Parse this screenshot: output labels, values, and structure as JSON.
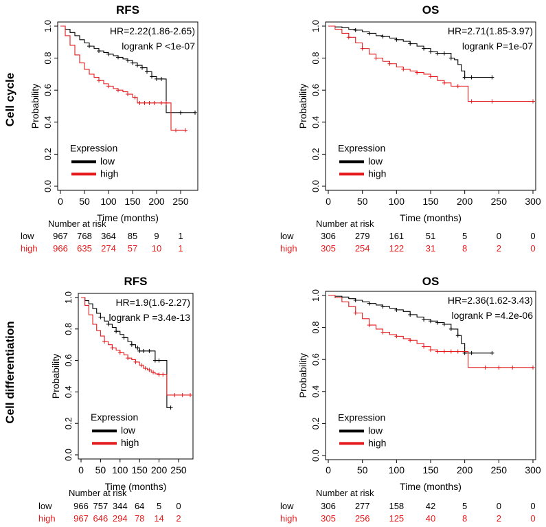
{
  "row_labels": [
    "Cell cycle",
    "Cell differentiation"
  ],
  "colors": {
    "low": "#000000",
    "high": "#e41a1c",
    "axis": "#000000"
  },
  "chart_data": [
    {
      "type": "line",
      "title": "RFS",
      "xlabel": "Time (months)",
      "ylabel": "Probability",
      "xlim": [
        0,
        280
      ],
      "ylim": [
        0,
        1
      ],
      "xticks": [
        0,
        50,
        100,
        150,
        200,
        250
      ],
      "yticks": [
        0.0,
        0.2,
        0.4,
        0.6,
        0.8,
        1.0
      ],
      "yticklabels": [
        "0.0",
        "0.2",
        "0.4",
        "0.6",
        "0.8",
        "1.0"
      ],
      "hr_text": "HR=2.22(1.86-2.65)",
      "p_text": "logrank P <1e-07",
      "legend": {
        "title": "Expression",
        "labels": [
          "low",
          "high"
        ]
      },
      "series": [
        {
          "name": "low",
          "x": [
            0,
            10,
            20,
            30,
            40,
            50,
            60,
            70,
            80,
            90,
            100,
            110,
            120,
            130,
            140,
            150,
            160,
            170,
            180,
            190,
            200,
            210,
            218,
            220,
            230,
            250,
            280
          ],
          "y": [
            1.0,
            0.98,
            0.96,
            0.94,
            0.915,
            0.895,
            0.875,
            0.86,
            0.845,
            0.835,
            0.825,
            0.815,
            0.805,
            0.795,
            0.785,
            0.77,
            0.755,
            0.74,
            0.715,
            0.685,
            0.67,
            0.67,
            0.67,
            0.46,
            0.46,
            0.46,
            0.46
          ],
          "censor_x": [
            60,
            80,
            100,
            120,
            140,
            150,
            160,
            170,
            180,
            190,
            200,
            210,
            250,
            280
          ]
        },
        {
          "name": "high",
          "x": [
            0,
            10,
            20,
            30,
            40,
            50,
            60,
            70,
            80,
            90,
            100,
            110,
            120,
            130,
            140,
            150,
            160,
            170,
            180,
            190,
            200,
            210,
            220,
            228,
            230,
            260
          ],
          "y": [
            1.0,
            0.94,
            0.88,
            0.82,
            0.77,
            0.73,
            0.7,
            0.68,
            0.66,
            0.64,
            0.625,
            0.61,
            0.6,
            0.59,
            0.575,
            0.555,
            0.52,
            0.52,
            0.52,
            0.52,
            0.52,
            0.52,
            0.52,
            0.52,
            0.35,
            0.35
          ],
          "censor_x": [
            80,
            100,
            120,
            140,
            155,
            165,
            175,
            185,
            195,
            210,
            220,
            240,
            260
          ]
        }
      ],
      "risk_table": {
        "header": "Number at risk",
        "times": [
          0,
          50,
          100,
          150,
          200,
          250
        ],
        "rows": [
          {
            "label": "low",
            "values": [
              "967",
              "768",
              "364",
              "85",
              "9",
              "1"
            ]
          },
          {
            "label": "high",
            "values": [
              "966",
              "635",
              "274",
              "57",
              "10",
              "1"
            ]
          }
        ]
      }
    },
    {
      "type": "line",
      "title": "OS",
      "xlabel": "Time (months)",
      "ylabel": "Probability",
      "xlim": [
        0,
        300
      ],
      "ylim": [
        0,
        1
      ],
      "xticks": [
        0,
        50,
        100,
        150,
        200,
        250,
        300
      ],
      "yticks": [
        0.0,
        0.2,
        0.4,
        0.6,
        0.8,
        1.0
      ],
      "yticklabels": [
        "0.0",
        "0.2",
        "0.4",
        "0.6",
        "0.8",
        "1.0"
      ],
      "hr_text": "HR=2.71(1.85-3.97)",
      "p_text": "logrank P=1e-07",
      "legend": {
        "title": "Expression",
        "labels": [
          "low",
          "high"
        ]
      },
      "series": [
        {
          "name": "low",
          "x": [
            0,
            10,
            20,
            30,
            40,
            50,
            60,
            70,
            80,
            90,
            100,
            110,
            120,
            130,
            140,
            150,
            160,
            170,
            180,
            185,
            190,
            195,
            200,
            240
          ],
          "y": [
            1.0,
            0.995,
            0.99,
            0.98,
            0.975,
            0.965,
            0.955,
            0.94,
            0.935,
            0.925,
            0.915,
            0.905,
            0.89,
            0.875,
            0.86,
            0.84,
            0.83,
            0.83,
            0.8,
            0.79,
            0.76,
            0.72,
            0.68,
            0.68
          ],
          "censor_x": [
            40,
            60,
            80,
            100,
            120,
            140,
            150,
            160,
            170,
            180,
            200,
            210,
            240
          ]
        },
        {
          "name": "high",
          "x": [
            0,
            10,
            20,
            30,
            40,
            50,
            60,
            70,
            80,
            90,
            100,
            110,
            120,
            130,
            140,
            150,
            160,
            170,
            180,
            200,
            205,
            210,
            300
          ],
          "y": [
            1.0,
            0.98,
            0.955,
            0.93,
            0.895,
            0.86,
            0.825,
            0.8,
            0.78,
            0.765,
            0.745,
            0.73,
            0.72,
            0.71,
            0.7,
            0.685,
            0.66,
            0.645,
            0.625,
            0.625,
            0.53,
            0.53,
            0.53
          ],
          "censor_x": [
            30,
            50,
            70,
            90,
            110,
            130,
            150,
            170,
            190,
            210,
            240,
            300
          ]
        }
      ],
      "risk_table": {
        "header": "Number at risk",
        "times": [
          0,
          50,
          100,
          150,
          200,
          250,
          300
        ],
        "rows": [
          {
            "label": "low",
            "values": [
              "306",
              "279",
              "161",
              "51",
              "5",
              "0",
              "0"
            ]
          },
          {
            "label": "high",
            "values": [
              "305",
              "254",
              "122",
              "31",
              "8",
              "2",
              "0"
            ]
          }
        ]
      }
    },
    {
      "type": "line",
      "title": "RFS",
      "xlabel": "Time (months)",
      "ylabel": "Probability",
      "xlim": [
        0,
        280
      ],
      "ylim": [
        0,
        1
      ],
      "xticks": [
        0,
        50,
        100,
        150,
        200,
        250
      ],
      "yticks": [
        0.0,
        0.2,
        0.4,
        0.6,
        0.8,
        1.0
      ],
      "yticklabels": [
        "0.0",
        "0.2",
        "0.4",
        "0.6",
        "0.8",
        "1.0"
      ],
      "hr_text": "HR=1.9(1.6-2.27)",
      "p_text": "logrank P =3.4e-13",
      "legend": {
        "title": "Expression",
        "labels": [
          "low",
          "high"
        ]
      },
      "series": [
        {
          "name": "low",
          "x": [
            0,
            10,
            20,
            30,
            40,
            50,
            60,
            70,
            80,
            90,
            100,
            110,
            120,
            130,
            140,
            150,
            160,
            170,
            180,
            190,
            200,
            210,
            218,
            220,
            230
          ],
          "y": [
            1.0,
            0.98,
            0.96,
            0.93,
            0.9,
            0.875,
            0.85,
            0.83,
            0.81,
            0.785,
            0.765,
            0.745,
            0.72,
            0.7,
            0.68,
            0.66,
            0.66,
            0.66,
            0.66,
            0.6,
            0.6,
            0.6,
            0.6,
            0.3,
            0.3
          ],
          "censor_x": [
            50,
            70,
            90,
            110,
            130,
            145,
            150,
            160,
            175,
            190,
            200,
            230
          ]
        },
        {
          "name": "high",
          "x": [
            0,
            10,
            20,
            30,
            40,
            50,
            60,
            70,
            80,
            90,
            100,
            110,
            120,
            130,
            140,
            150,
            160,
            170,
            180,
            190,
            200,
            210,
            215,
            220,
            280
          ],
          "y": [
            1.0,
            0.95,
            0.89,
            0.83,
            0.79,
            0.755,
            0.72,
            0.7,
            0.68,
            0.665,
            0.65,
            0.635,
            0.615,
            0.605,
            0.59,
            0.57,
            0.55,
            0.54,
            0.525,
            0.515,
            0.51,
            0.51,
            0.51,
            0.38,
            0.38
          ],
          "censor_x": [
            60,
            80,
            100,
            120,
            140,
            155,
            165,
            175,
            185,
            200,
            210,
            240,
            260,
            280
          ]
        }
      ],
      "risk_table": {
        "header": "Number at risk",
        "times": [
          0,
          50,
          100,
          150,
          200,
          250
        ],
        "rows": [
          {
            "label": "low",
            "values": [
              "966",
              "757",
              "344",
              "64",
              "5",
              "0"
            ]
          },
          {
            "label": "high",
            "values": [
              "967",
              "646",
              "294",
              "78",
              "14",
              "2"
            ]
          }
        ]
      }
    },
    {
      "type": "line",
      "title": "OS",
      "xlabel": "Time (months)",
      "ylabel": "Probability",
      "xlim": [
        0,
        300
      ],
      "ylim": [
        0,
        1
      ],
      "xticks": [
        0,
        50,
        100,
        150,
        200,
        250,
        300
      ],
      "yticks": [
        0.0,
        0.2,
        0.4,
        0.6,
        0.8,
        1.0
      ],
      "yticklabels": [
        "0.0",
        "0.2",
        "0.4",
        "0.6",
        "0.8",
        "1.0"
      ],
      "hr_text": "HR=2.36(1.62-3.43)",
      "p_text": "logrank P =4.2e-06",
      "legend": {
        "title": "Expression",
        "labels": [
          "low",
          "high"
        ]
      },
      "series": [
        {
          "name": "low",
          "x": [
            0,
            10,
            20,
            30,
            40,
            50,
            60,
            70,
            80,
            90,
            100,
            110,
            120,
            130,
            140,
            150,
            160,
            170,
            180,
            190,
            195,
            200,
            240
          ],
          "y": [
            1.0,
            0.995,
            0.99,
            0.98,
            0.97,
            0.96,
            0.95,
            0.94,
            0.93,
            0.92,
            0.91,
            0.9,
            0.88,
            0.865,
            0.85,
            0.84,
            0.83,
            0.82,
            0.79,
            0.75,
            0.7,
            0.64,
            0.64
          ],
          "censor_x": [
            40,
            60,
            80,
            100,
            120,
            140,
            150,
            160,
            170,
            180,
            190,
            200,
            210,
            240
          ]
        },
        {
          "name": "high",
          "x": [
            0,
            10,
            20,
            30,
            40,
            50,
            60,
            70,
            80,
            90,
            100,
            110,
            120,
            130,
            140,
            150,
            160,
            170,
            180,
            200,
            205,
            210,
            300
          ],
          "y": [
            1.0,
            0.985,
            0.96,
            0.93,
            0.89,
            0.855,
            0.815,
            0.79,
            0.77,
            0.755,
            0.745,
            0.73,
            0.72,
            0.7,
            0.68,
            0.66,
            0.65,
            0.65,
            0.65,
            0.65,
            0.55,
            0.55,
            0.55
          ],
          "censor_x": [
            40,
            60,
            80,
            100,
            120,
            140,
            150,
            160,
            170,
            180,
            190,
            230,
            250,
            270,
            300
          ]
        }
      ],
      "risk_table": {
        "header": "Number at risk",
        "times": [
          0,
          50,
          100,
          150,
          200,
          250,
          300
        ],
        "rows": [
          {
            "label": "low",
            "values": [
              "306",
              "277",
              "158",
              "42",
              "5",
              "0",
              "0"
            ]
          },
          {
            "label": "high",
            "values": [
              "305",
              "256",
              "125",
              "40",
              "8",
              "2",
              "0"
            ]
          }
        ]
      }
    }
  ]
}
